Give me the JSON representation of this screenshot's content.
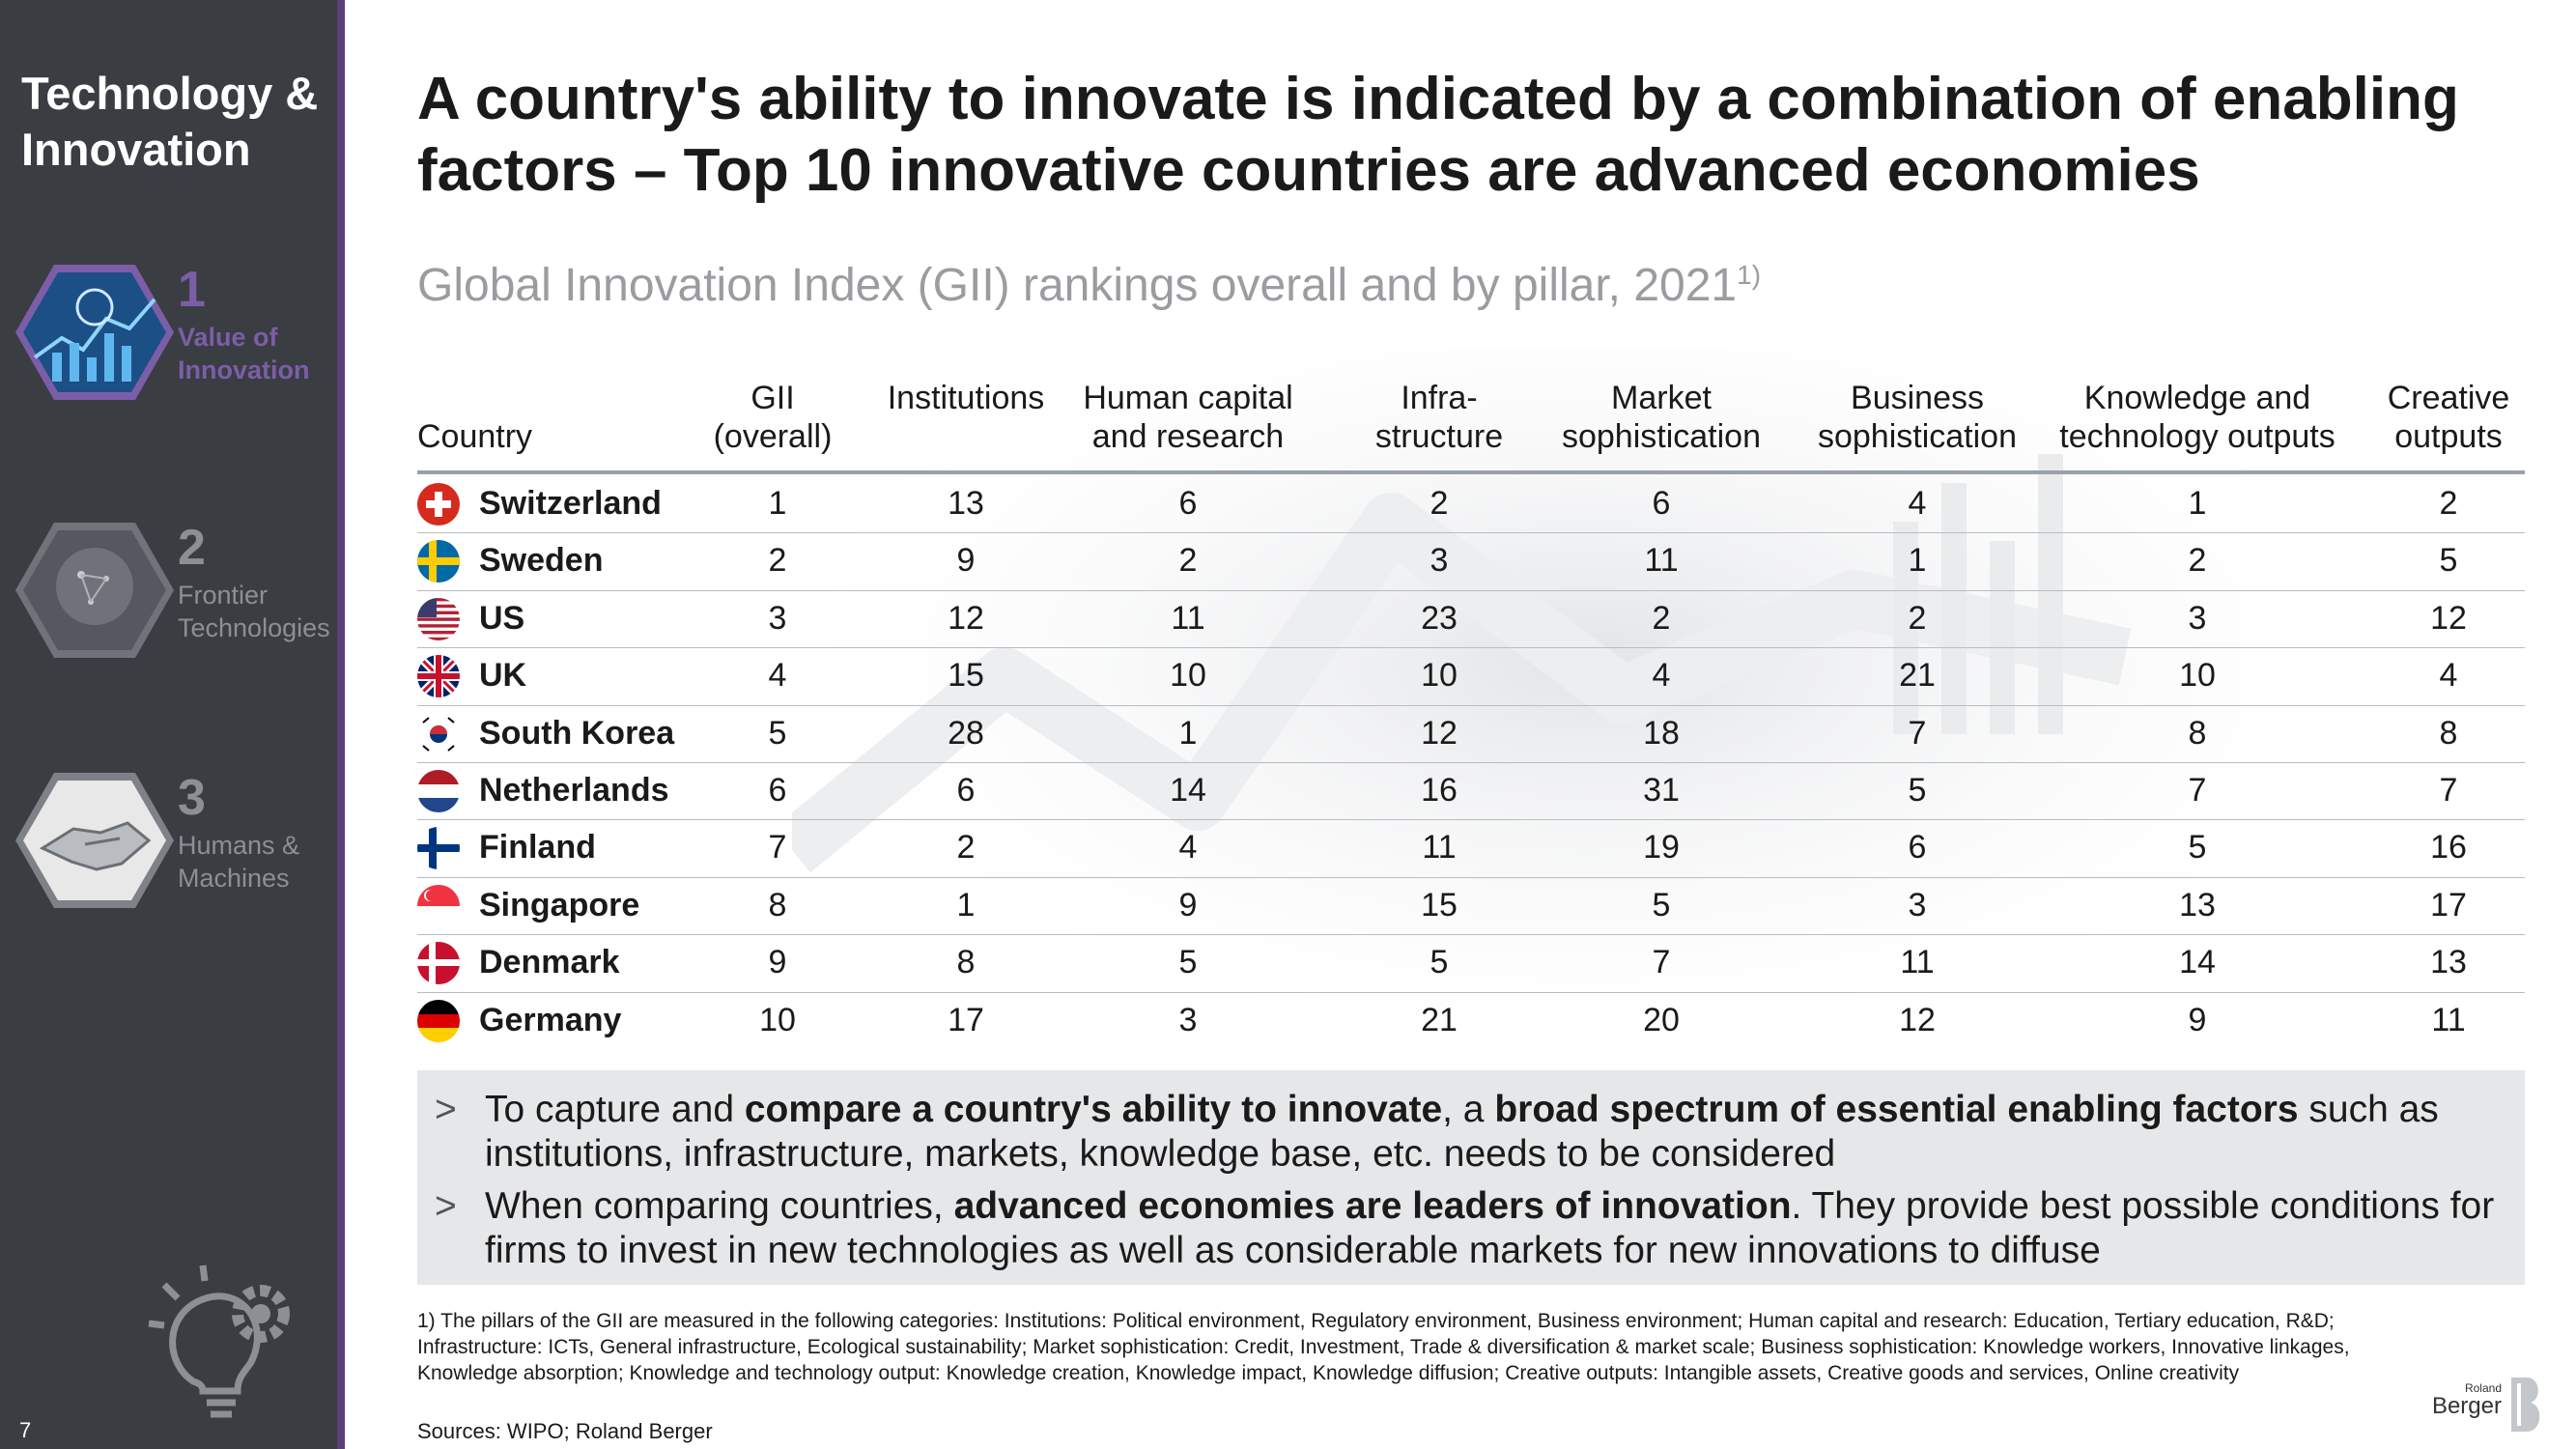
{
  "sidebar": {
    "section_title": "Technology & Innovation",
    "items": [
      {
        "number": "1",
        "label": "Value of Innovation",
        "active": true
      },
      {
        "number": "2",
        "label": "Frontier Technologies",
        "active": false
      },
      {
        "number": "3",
        "label": "Humans & Machines",
        "active": false
      }
    ],
    "page_number": "7"
  },
  "header": {
    "title": "A country's ability to innovate is indicated by a combination of enabling factors – Top 10 innovative countries are advanced economies",
    "subtitle": "Global Innovation Index (GII) rankings overall and by pillar, 2021",
    "subtitle_footnote": "1)"
  },
  "table": {
    "columns": [
      {
        "line1": "",
        "line2": "Country"
      },
      {
        "line1": "GII",
        "line2": "(overall)"
      },
      {
        "line1": "",
        "line2": "Institutions"
      },
      {
        "line1": "Human capital",
        "line2": "and research"
      },
      {
        "line1": "Infra-",
        "line2": "structure"
      },
      {
        "line1": "Market",
        "line2": "sophistication"
      },
      {
        "line1": "Business",
        "line2": "sophistication"
      },
      {
        "line1": "Knowledge and",
        "line2": "technology outputs"
      },
      {
        "line1": "Creative",
        "line2": "outputs"
      }
    ],
    "rows": [
      {
        "country": "Switzerland",
        "flag": "switzerland-flag-icon",
        "values": [
          "1",
          "13",
          "6",
          "2",
          "6",
          "4",
          "1",
          "2"
        ]
      },
      {
        "country": "Sweden",
        "flag": "sweden-flag-icon",
        "values": [
          "2",
          "9",
          "2",
          "3",
          "11",
          "1",
          "2",
          "5"
        ]
      },
      {
        "country": "US",
        "flag": "us-flag-icon",
        "values": [
          "3",
          "12",
          "11",
          "23",
          "2",
          "2",
          "3",
          "12"
        ]
      },
      {
        "country": "UK",
        "flag": "uk-flag-icon",
        "values": [
          "4",
          "15",
          "10",
          "10",
          "4",
          "21",
          "10",
          "4"
        ]
      },
      {
        "country": "South Korea",
        "flag": "south-korea-flag-icon",
        "values": [
          "5",
          "28",
          "1",
          "12",
          "18",
          "7",
          "8",
          "8"
        ]
      },
      {
        "country": "Netherlands",
        "flag": "netherlands-flag-icon",
        "values": [
          "6",
          "6",
          "14",
          "16",
          "31",
          "5",
          "7",
          "7"
        ]
      },
      {
        "country": "Finland",
        "flag": "finland-flag-icon",
        "values": [
          "7",
          "2",
          "4",
          "11",
          "19",
          "6",
          "5",
          "16"
        ]
      },
      {
        "country": "Singapore",
        "flag": "singapore-flag-icon",
        "values": [
          "8",
          "1",
          "9",
          "15",
          "5",
          "3",
          "13",
          "17"
        ]
      },
      {
        "country": "Denmark",
        "flag": "denmark-flag-icon",
        "values": [
          "9",
          "8",
          "5",
          "5",
          "7",
          "11",
          "14",
          "13"
        ]
      },
      {
        "country": "Germany",
        "flag": "germany-flag-icon",
        "values": [
          "10",
          "17",
          "3",
          "21",
          "20",
          "12",
          "9",
          "11"
        ]
      }
    ]
  },
  "bullets": [
    {
      "marker": ">",
      "p1": "To capture and ",
      "b1": "compare a country's ability to innovate",
      "p2": ", a ",
      "b2": "broad spectrum of essential enabling factors",
      "p3": " such as institutions, infrastructure, markets, knowledge base, etc. needs to be considered"
    },
    {
      "marker": ">",
      "p1": "When comparing countries, ",
      "b1": "advanced economies are leaders of innovation",
      "p2": ". They provide best possible conditions for firms to invest in new technologies as well as considerable markets for new innovations to diffuse",
      "b2": "",
      "p3": ""
    }
  ],
  "footnote": "1) The pillars of the GII are measured in the following categories: Institutions: Political environment, Regulatory environment, Business environment; Human capital and research: Education, Tertiary education, R&D; Infrastructure: ICTs, General infrastructure, Ecological sustainability; Market sophistication: Credit, Investment, Trade & diversification & market scale; Business sophistication: Knowledge workers, Innovative linkages, Knowledge absorption; Knowledge and technology output: Knowledge creation, Knowledge impact, Knowledge diffusion; Creative outputs: Intangible assets, Creative goods and services, Online creativity",
  "sources": "Sources: WIPO; Roland Berger",
  "logo": {
    "small": "Roland",
    "big": "Berger"
  },
  "colors": {
    "sidebar": "#3a3d42",
    "accent": "#7b5ea7",
    "bullet_box": "#e6e7e9"
  }
}
